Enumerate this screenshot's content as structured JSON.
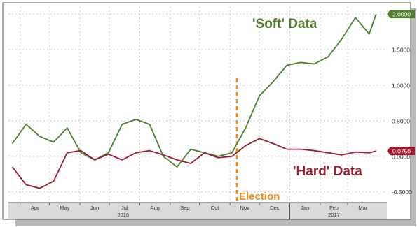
{
  "chart_data": {
    "type": "line",
    "title": "",
    "xlabel": "",
    "ylabel": "",
    "x": [
      "2016-03-24",
      "2016-04-07",
      "2016-04-21",
      "2016-05-05",
      "2016-05-19",
      "2016-06-02",
      "2016-06-16",
      "2016-06-30",
      "2016-07-14",
      "2016-07-28",
      "2016-08-11",
      "2016-08-25",
      "2016-09-08",
      "2016-09-22",
      "2016-10-06",
      "2016-10-20",
      "2016-11-03",
      "2016-11-17",
      "2016-12-01",
      "2016-12-15",
      "2016-12-29",
      "2017-01-12",
      "2017-01-26",
      "2017-02-09",
      "2017-02-23",
      "2017-03-09",
      "2017-03-23",
      "2017-03-30"
    ],
    "series": [
      {
        "name": "'Soft' Data",
        "color": "#4e7f2a",
        "values": [
          0.18,
          0.45,
          0.28,
          0.2,
          0.4,
          0.05,
          -0.05,
          0.05,
          0.45,
          0.52,
          0.45,
          0.0,
          -0.15,
          0.1,
          0.05,
          0.0,
          0.05,
          0.4,
          0.85,
          1.05,
          1.28,
          1.32,
          1.3,
          1.4,
          1.65,
          1.95,
          1.72,
          2.0
        ]
      },
      {
        "name": "'Hard' Data",
        "color": "#9b1b30",
        "values": [
          -0.15,
          -0.4,
          -0.45,
          -0.35,
          0.05,
          0.08,
          -0.05,
          0.03,
          -0.05,
          0.05,
          0.08,
          0.02,
          -0.05,
          -0.1,
          0.05,
          -0.02,
          0.0,
          0.15,
          0.25,
          0.18,
          0.1,
          0.1,
          0.08,
          0.05,
          0.02,
          0.06,
          0.05,
          0.075
        ]
      }
    ],
    "ylim": [
      -0.65,
      2.1
    ],
    "y_ticks": [
      "2.0000",
      "1.5000",
      "1.0000",
      "0.5000",
      "0.0000",
      "-0.5000"
    ],
    "y_tick_values": [
      2.0,
      1.5,
      1.0,
      0.5,
      0.0,
      -0.5
    ],
    "x_month_labels": [
      "Apr",
      "May",
      "Jun",
      "Jul",
      "Aug",
      "Sep",
      "Oct",
      "Nov",
      "Dec",
      "Jan",
      "Feb",
      "Mar"
    ],
    "x_month_dates": [
      "2016-04-01",
      "2016-05-01",
      "2016-06-01",
      "2016-07-01",
      "2016-08-01",
      "2016-09-01",
      "2016-10-01",
      "2016-11-01",
      "2016-12-01",
      "2017-01-01",
      "2017-02-01",
      "2017-03-01"
    ],
    "x_year_labels": [
      {
        "text": "2016",
        "date": "2016-07-15"
      },
      {
        "text": "2017",
        "date": "2017-02-15"
      }
    ],
    "last_value_badges": [
      {
        "series": "'Soft' Data",
        "text": "2.0000"
      },
      {
        "series": "'Hard' Data",
        "text": "0.0750"
      }
    ],
    "annotations": [
      {
        "text": "'Soft' Data",
        "color": "#4e7f2a"
      },
      {
        "text": "'Hard' Data",
        "color": "#9b1b30"
      },
      {
        "text": "Election",
        "color": "#f08a1c",
        "date": "2016-11-08",
        "style": "vertical dashed line"
      }
    ],
    "grid": true,
    "legend": "none"
  }
}
